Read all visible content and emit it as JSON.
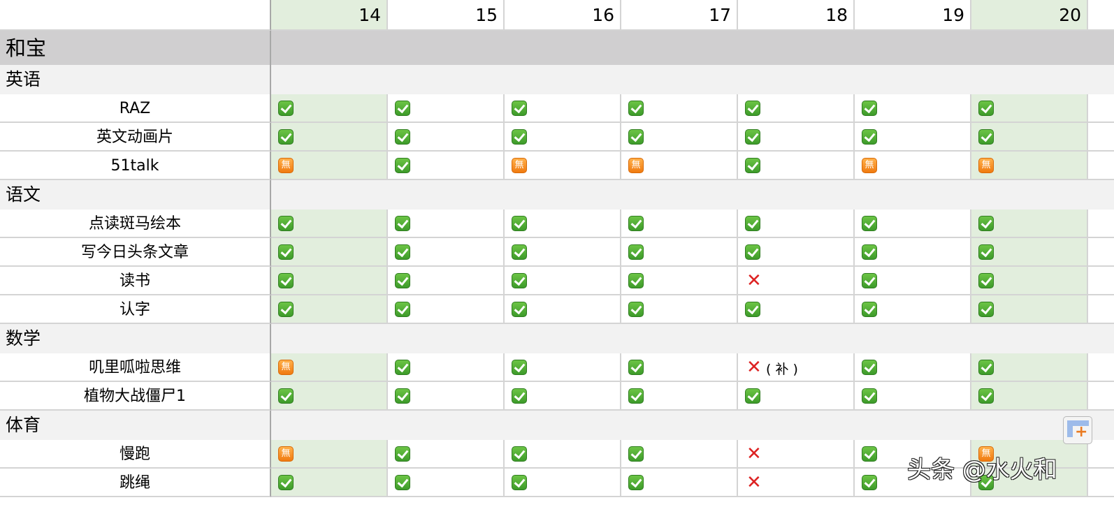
{
  "days": [
    "14",
    "15",
    "16",
    "17",
    "18",
    "19",
    "20"
  ],
  "highlight_days": [
    "14",
    "20"
  ],
  "person": "和宝",
  "groups": [
    {
      "label": "英语",
      "items": [
        {
          "label": "RAZ",
          "cells": [
            "ok",
            "ok",
            "ok",
            "ok",
            "ok",
            "ok",
            "ok"
          ]
        },
        {
          "label": "英文动画片",
          "cells": [
            "ok",
            "ok",
            "ok",
            "ok",
            "ok",
            "ok",
            "ok"
          ]
        },
        {
          "label": "51talk",
          "cells": [
            "na",
            "ok",
            "na",
            "na",
            "ok",
            "na",
            "na"
          ]
        }
      ]
    },
    {
      "label": "语文",
      "items": [
        {
          "label": "点读斑马绘本",
          "cells": [
            "ok",
            "ok",
            "ok",
            "ok",
            "ok",
            "ok",
            "ok"
          ]
        },
        {
          "label": "写今日头条文章",
          "cells": [
            "ok",
            "ok",
            "ok",
            "ok",
            "ok",
            "ok",
            "ok"
          ]
        },
        {
          "label": "读书",
          "cells": [
            "ok",
            "ok",
            "ok",
            "ok",
            "x",
            "ok",
            "ok"
          ]
        },
        {
          "label": "认字",
          "cells": [
            "ok",
            "ok",
            "ok",
            "ok",
            "ok",
            "ok",
            "ok"
          ]
        }
      ]
    },
    {
      "label": "数学",
      "items": [
        {
          "label": "叽里呱啦思维",
          "cells": [
            "na",
            "ok",
            "ok",
            "ok",
            "x",
            "ok",
            "ok"
          ],
          "notes": {
            "4": "( 补 )"
          }
        },
        {
          "label": "植物大战僵尸1",
          "cells": [
            "ok",
            "ok",
            "ok",
            "ok",
            "ok",
            "ok",
            "ok"
          ]
        }
      ]
    },
    {
      "label": "体育",
      "items": [
        {
          "label": "慢跑",
          "cells": [
            "na",
            "ok",
            "ok",
            "ok",
            "x",
            "ok",
            "na"
          ]
        },
        {
          "label": "跳绳",
          "cells": [
            "ok",
            "ok",
            "ok",
            "ok",
            "x",
            "ok",
            "ok"
          ]
        }
      ]
    }
  ],
  "icons": {
    "ok": "white-check-mark-icon",
    "na": "no-charge-button-icon",
    "x": "cross-mark-icon",
    "na_glyph": "無",
    "x_glyph": "✕"
  },
  "colors": {
    "highlight": "#e2eedd",
    "person_row": "#d0cfd0",
    "group_row": "#f2f2f2",
    "ok": "#4caf32",
    "na": "#f5901f",
    "x": "#dd2222"
  },
  "watermark": "头条 @水火和"
}
